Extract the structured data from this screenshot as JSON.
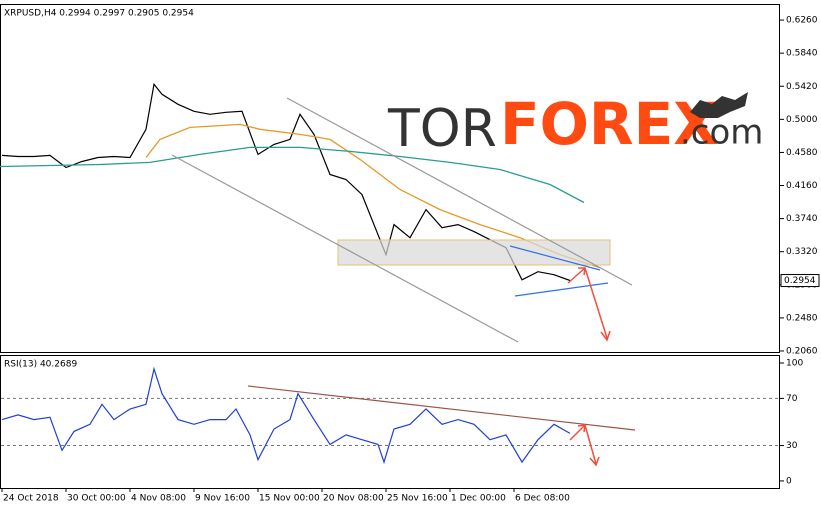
{
  "chart_data": [
    {
      "type": "line",
      "title": "XRPUSD,H4 0.2994 0.2997 0.2905 0.2954",
      "xlim": [
        -1,
        389
      ],
      "ylim": [
        0.2047,
        0.6464
      ],
      "yticks": [
        {
          "value": 0.626,
          "label": "0.6260"
        },
        {
          "value": 0.584,
          "label": "0.5840"
        },
        {
          "value": 0.542,
          "label": "0.5420"
        },
        {
          "value": 0.5,
          "label": "0.5000"
        },
        {
          "value": 0.458,
          "label": "0.4580"
        },
        {
          "value": 0.416,
          "label": "0.4160"
        },
        {
          "value": 0.374,
          "label": "0.3740"
        },
        {
          "value": 0.332,
          "label": "0.3320"
        },
        {
          "value": 0.29,
          "label": "0.2900"
        },
        {
          "value": 0.248,
          "label": "0.2480"
        },
        {
          "value": 0.206,
          "label": "0.2060"
        }
      ],
      "current_value": 0.2954,
      "series": [
        {
          "color": "#000000",
          "x": [
            0,
            8,
            16,
            24,
            32,
            40,
            48,
            56,
            64,
            72,
            76,
            80,
            88,
            96,
            104,
            112,
            120,
            128,
            136,
            144,
            149,
            156,
            164,
            172,
            180,
            188,
            192,
            196,
            204,
            212,
            220,
            228,
            236,
            244,
            252,
            260,
            268,
            276,
            284
          ],
          "values": [
            0.4542,
            0.4529,
            0.4529,
            0.4542,
            0.4389,
            0.4465,
            0.4516,
            0.4529,
            0.4516,
            0.4873,
            0.5445,
            0.5318,
            0.5191,
            0.5102,
            0.5064,
            0.5089,
            0.5102,
            0.4555,
            0.4682,
            0.4745,
            0.5064,
            0.4809,
            0.43,
            0.4236,
            0.4045,
            0.3536,
            0.3282,
            0.3664,
            0.3498,
            0.3855,
            0.3625,
            0.3664,
            0.3575,
            0.3473,
            0.3371,
            0.2964,
            0.3066,
            0.3028,
            0.2954
          ]
        },
        {
          "color": "#e69a28",
          "x": [
            72,
            79,
            94,
            119,
            129,
            149,
            164,
            179,
            199,
            219,
            239,
            259,
            279,
            299
          ],
          "values": [
            0.4516,
            0.4745,
            0.4898,
            0.4936,
            0.4873,
            0.4809,
            0.4745,
            0.4491,
            0.4109,
            0.3855,
            0.3664,
            0.3498,
            0.3282,
            0.3117
          ]
        },
        {
          "color": "#2a9d8f",
          "x": [
            -1,
            49,
            74,
            99,
            124,
            149,
            174,
            199,
            224,
            249,
            274,
            291
          ],
          "values": [
            0.4402,
            0.4427,
            0.4453,
            0.4555,
            0.4644,
            0.4644,
            0.4593,
            0.4529,
            0.4453,
            0.4364,
            0.4173,
            0.3944
          ]
        }
      ]
    },
    {
      "type": "line",
      "title": "RSI(13) 40.2689",
      "xlim": [
        -1,
        389
      ],
      "ylim": [
        -6,
        106.8
      ],
      "yticks": [
        0,
        30,
        70,
        100
      ],
      "levels": [
        30,
        70
      ],
      "xticks": [
        {
          "value": 0,
          "label": "24 Oct 2018"
        },
        {
          "value": 32,
          "label": "30 Oct 00:00"
        },
        {
          "value": 64,
          "label": "4 Nov 08:00"
        },
        {
          "value": 96,
          "label": "9 Nov 16:00"
        },
        {
          "value": 128,
          "label": "15 Nov 00:00"
        },
        {
          "value": 160,
          "label": "20 Nov 08:00"
        },
        {
          "value": 192,
          "label": "25 Nov 16:00"
        },
        {
          "value": 224,
          "label": "1 Dec 00:00"
        },
        {
          "value": 256,
          "label": "6 Dec 08:00"
        }
      ],
      "series": [
        {
          "color": "#1f3fd9",
          "x": [
            0,
            8,
            16,
            24,
            30,
            36,
            44,
            50,
            56,
            64,
            72,
            76,
            80,
            88,
            96,
            104,
            112,
            117,
            124,
            128,
            136,
            144,
            148,
            156,
            164,
            172,
            180,
            188,
            191,
            196,
            204,
            212,
            220,
            228,
            236,
            244,
            252,
            260,
            268,
            276,
            284
          ],
          "values": [
            52,
            56,
            52,
            54,
            26,
            42,
            48,
            65,
            52,
            61,
            65,
            95,
            74,
            52,
            48,
            52,
            52,
            61,
            39,
            18,
            44,
            52,
            74,
            52,
            31,
            39,
            35,
            31,
            16,
            44,
            48,
            61,
            48,
            52,
            48,
            35,
            39,
            16,
            35,
            48,
            40.2689
          ]
        }
      ]
    }
  ],
  "watermark": {
    "prefix": "TOR",
    "brand": "FOREX",
    "suffix": ".com"
  }
}
